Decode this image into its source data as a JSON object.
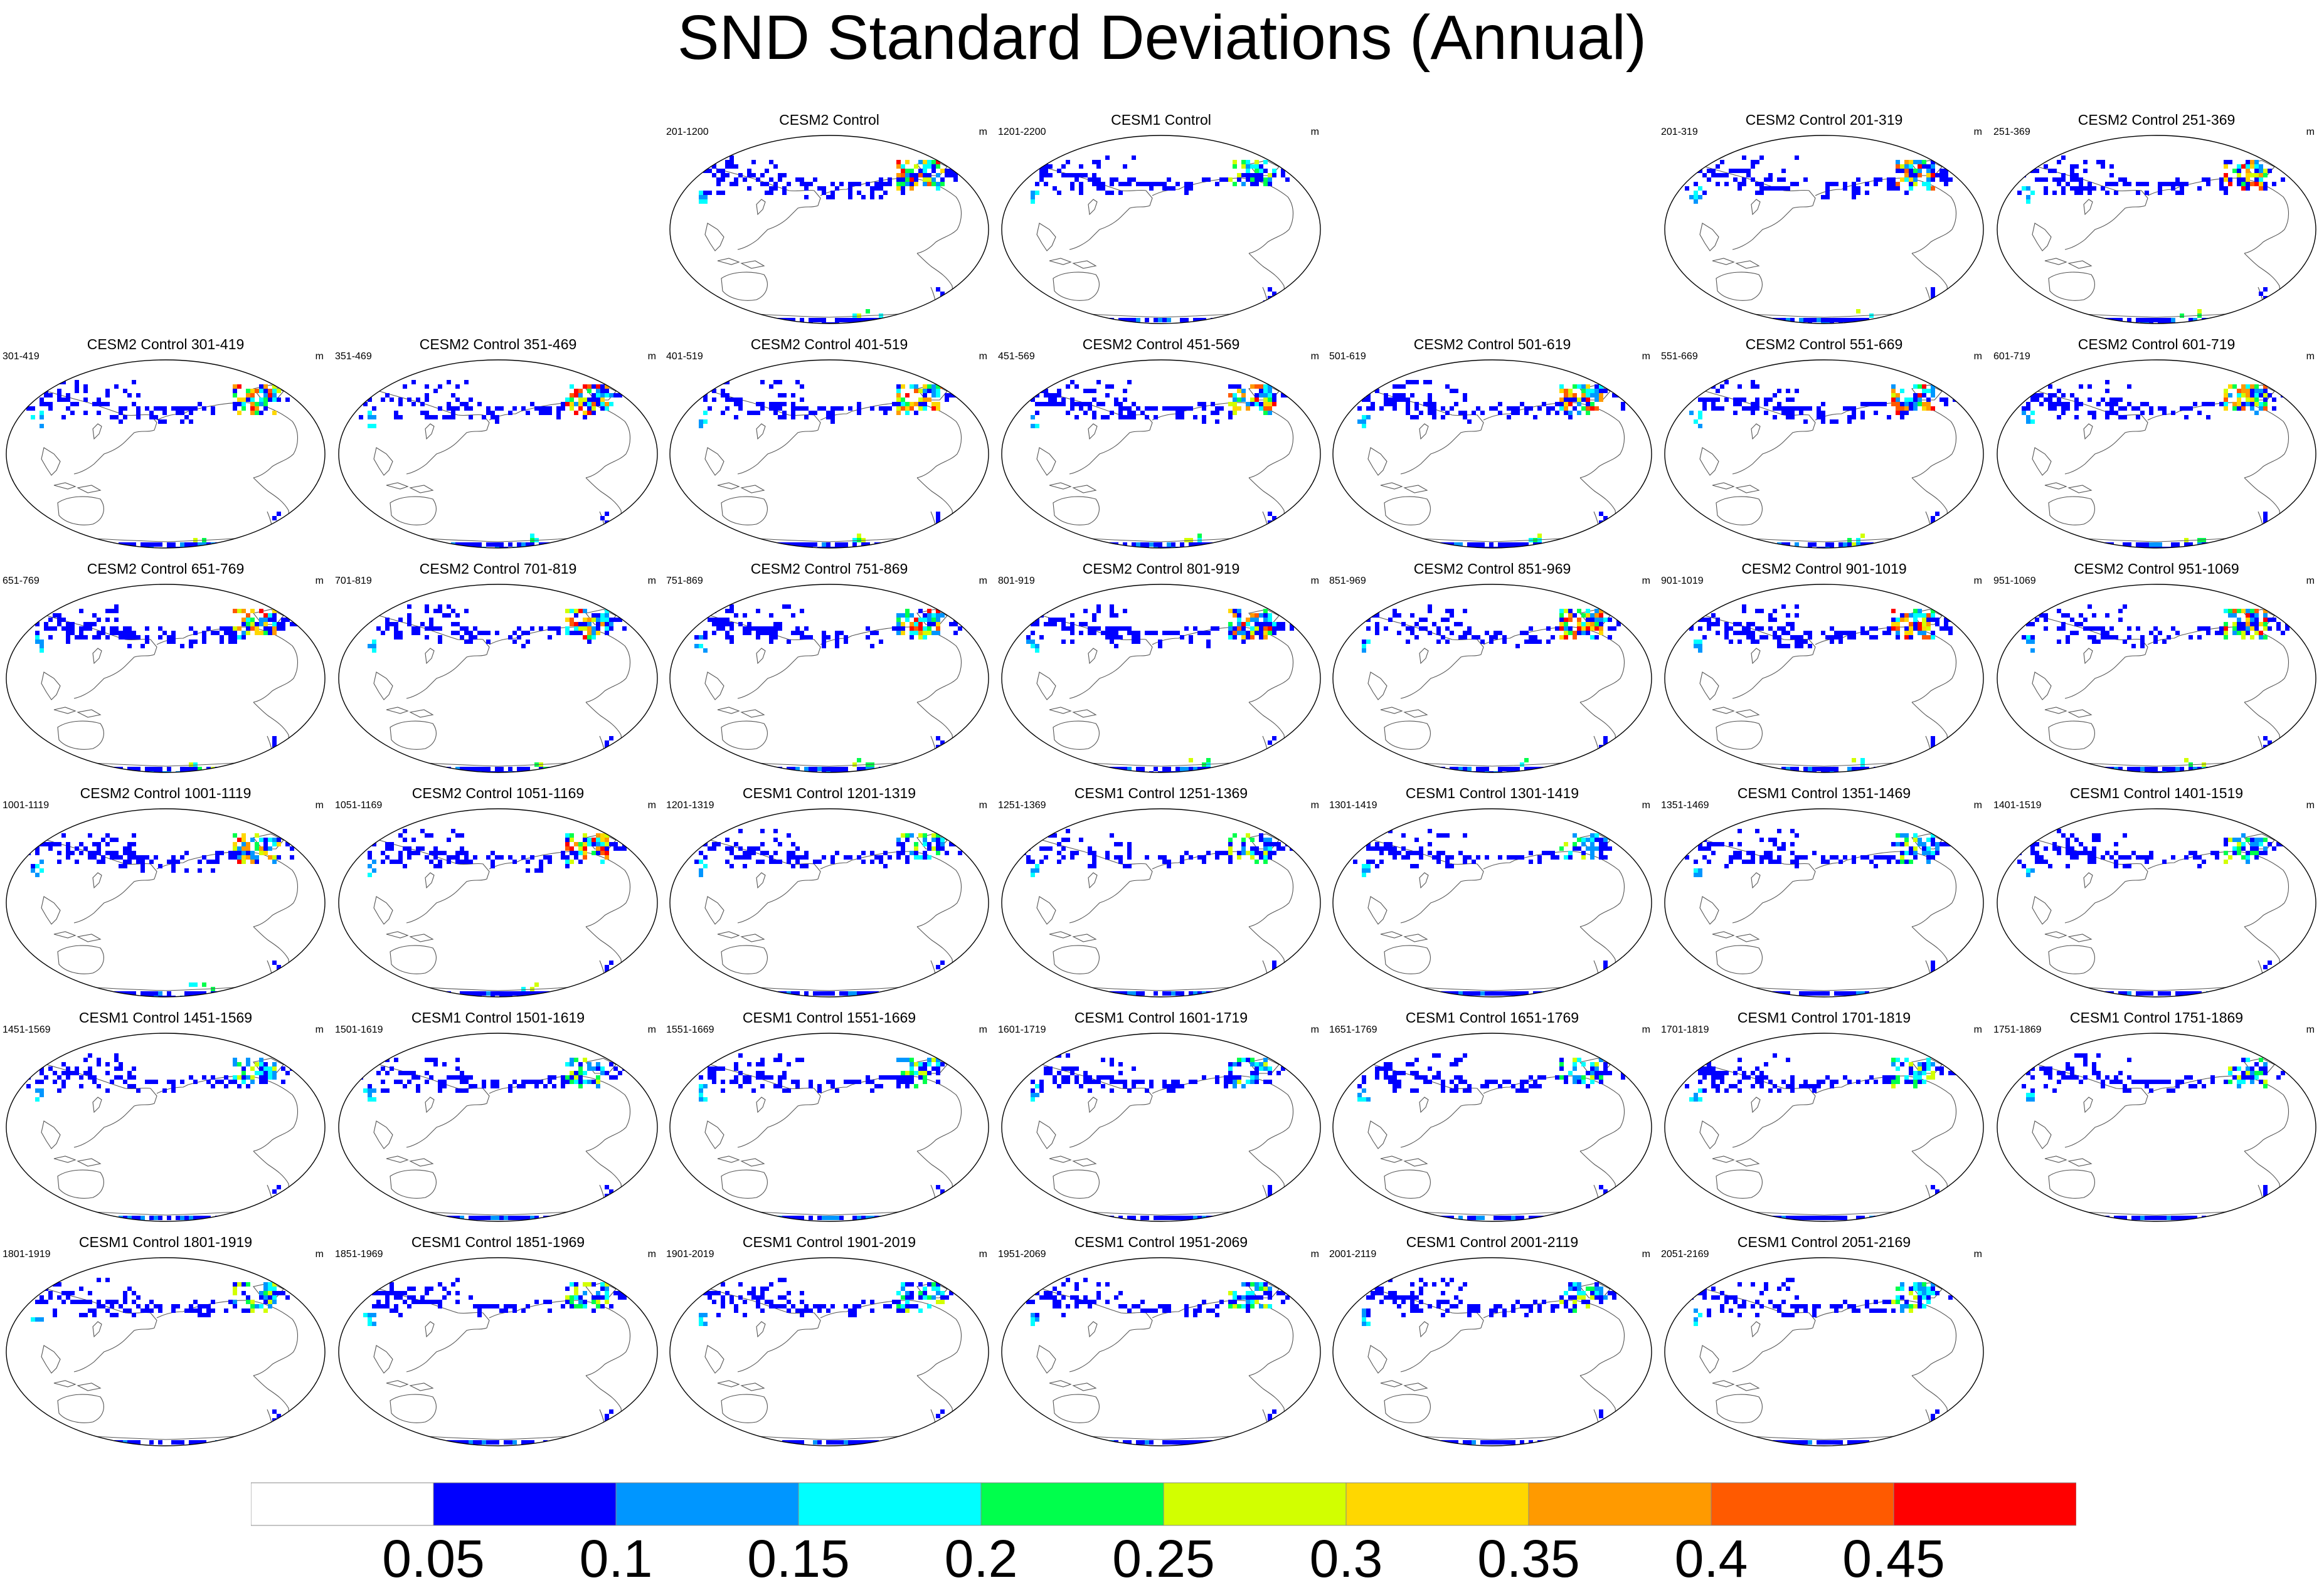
{
  "title": "SND Standard Deviations (Annual)",
  "units": "m",
  "panels": [
    {
      "row": 0,
      "col": 2,
      "title": "CESM2 Control",
      "range": "201-1200",
      "model": "CESM2"
    },
    {
      "row": 0,
      "col": 3,
      "title": "CESM1 Control",
      "range": "1201-2200",
      "model": "CESM1"
    },
    {
      "row": 0,
      "col": 5,
      "title": "CESM2 Control 201-319",
      "range": "201-319",
      "model": "CESM2"
    },
    {
      "row": 0,
      "col": 6,
      "title": "CESM2 Control 251-369",
      "range": "251-369",
      "model": "CESM2"
    },
    {
      "row": 1,
      "col": 0,
      "title": "CESM2 Control 301-419",
      "range": "301-419",
      "model": "CESM2"
    },
    {
      "row": 1,
      "col": 1,
      "title": "CESM2 Control 351-469",
      "range": "351-469",
      "model": "CESM2"
    },
    {
      "row": 1,
      "col": 2,
      "title": "CESM2 Control 401-519",
      "range": "401-519",
      "model": "CESM2"
    },
    {
      "row": 1,
      "col": 3,
      "title": "CESM2 Control 451-569",
      "range": "451-569",
      "model": "CESM2"
    },
    {
      "row": 1,
      "col": 4,
      "title": "CESM2 Control 501-619",
      "range": "501-619",
      "model": "CESM2"
    },
    {
      "row": 1,
      "col": 5,
      "title": "CESM2 Control 551-669",
      "range": "551-669",
      "model": "CESM2"
    },
    {
      "row": 1,
      "col": 6,
      "title": "CESM2 Control 601-719",
      "range": "601-719",
      "model": "CESM2"
    },
    {
      "row": 2,
      "col": 0,
      "title": "CESM2 Control 651-769",
      "range": "651-769",
      "model": "CESM2"
    },
    {
      "row": 2,
      "col": 1,
      "title": "CESM2 Control 701-819",
      "range": "701-819",
      "model": "CESM2"
    },
    {
      "row": 2,
      "col": 2,
      "title": "CESM2 Control 751-869",
      "range": "751-869",
      "model": "CESM2"
    },
    {
      "row": 2,
      "col": 3,
      "title": "CESM2 Control 801-919",
      "range": "801-919",
      "model": "CESM2"
    },
    {
      "row": 2,
      "col": 4,
      "title": "CESM2 Control 851-969",
      "range": "851-969",
      "model": "CESM2"
    },
    {
      "row": 2,
      "col": 5,
      "title": "CESM2 Control 901-1019",
      "range": "901-1019",
      "model": "CESM2"
    },
    {
      "row": 2,
      "col": 6,
      "title": "CESM2 Control 951-1069",
      "range": "951-1069",
      "model": "CESM2"
    },
    {
      "row": 3,
      "col": 0,
      "title": "CESM2 Control 1001-1119",
      "range": "1001-1119",
      "model": "CESM2"
    },
    {
      "row": 3,
      "col": 1,
      "title": "CESM2 Control 1051-1169",
      "range": "1051-1169",
      "model": "CESM2"
    },
    {
      "row": 3,
      "col": 2,
      "title": "CESM1 Control 1201-1319",
      "range": "1201-1319",
      "model": "CESM1"
    },
    {
      "row": 3,
      "col": 3,
      "title": "CESM1 Control 1251-1369",
      "range": "1251-1369",
      "model": "CESM1"
    },
    {
      "row": 3,
      "col": 4,
      "title": "CESM1 Control 1301-1419",
      "range": "1301-1419",
      "model": "CESM1"
    },
    {
      "row": 3,
      "col": 5,
      "title": "CESM1 Control 1351-1469",
      "range": "1351-1469",
      "model": "CESM1"
    },
    {
      "row": 3,
      "col": 6,
      "title": "CESM1 Control 1401-1519",
      "range": "1401-1519",
      "model": "CESM1"
    },
    {
      "row": 4,
      "col": 0,
      "title": "CESM1 Control 1451-1569",
      "range": "1451-1569",
      "model": "CESM1"
    },
    {
      "row": 4,
      "col": 1,
      "title": "CESM1 Control 1501-1619",
      "range": "1501-1619",
      "model": "CESM1"
    },
    {
      "row": 4,
      "col": 2,
      "title": "CESM1 Control 1551-1669",
      "range": "1551-1669",
      "model": "CESM1"
    },
    {
      "row": 4,
      "col": 3,
      "title": "CESM1 Control 1601-1719",
      "range": "1601-1719",
      "model": "CESM1"
    },
    {
      "row": 4,
      "col": 4,
      "title": "CESM1 Control 1651-1769",
      "range": "1651-1769",
      "model": "CESM1"
    },
    {
      "row": 4,
      "col": 5,
      "title": "CESM1 Control 1701-1819",
      "range": "1701-1819",
      "model": "CESM1"
    },
    {
      "row": 4,
      "col": 6,
      "title": "CESM1 Control 1751-1869",
      "range": "1751-1869",
      "model": "CESM1"
    },
    {
      "row": 5,
      "col": 0,
      "title": "CESM1 Control 1801-1919",
      "range": "1801-1919",
      "model": "CESM1"
    },
    {
      "row": 5,
      "col": 1,
      "title": "CESM1 Control 1851-1969",
      "range": "1851-1969",
      "model": "CESM1"
    },
    {
      "row": 5,
      "col": 2,
      "title": "CESM1 Control 1901-2019",
      "range": "1901-2019",
      "model": "CESM1"
    },
    {
      "row": 5,
      "col": 3,
      "title": "CESM1 Control 1951-2069",
      "range": "1951-2069",
      "model": "CESM1"
    },
    {
      "row": 5,
      "col": 4,
      "title": "CESM1 Control 2001-2119",
      "range": "2001-2119",
      "model": "CESM1"
    },
    {
      "row": 5,
      "col": 5,
      "title": "CESM1 Control 2051-2169",
      "range": "2051-2169",
      "model": "CESM1"
    }
  ],
  "colorbar": {
    "labels": [
      "0.05",
      "0.1",
      "0.15",
      "0.2",
      "0.25",
      "0.3",
      "0.35",
      "0.4",
      "0.45"
    ],
    "colors": [
      "#ffffff",
      "#0000ff",
      "#0096ff",
      "#00ffff",
      "#00ff4c",
      "#d2ff00",
      "#ffd700",
      "#ff9a00",
      "#ff5a00",
      "#ff0000"
    ]
  }
}
